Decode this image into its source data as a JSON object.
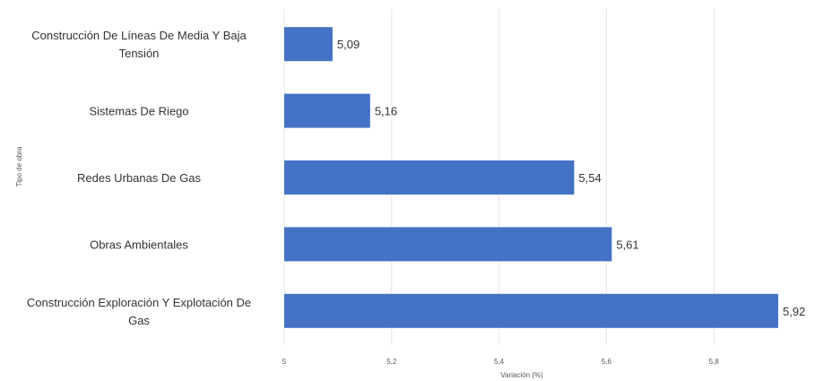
{
  "chart_data": {
    "type": "bar",
    "orientation": "horizontal",
    "title": "",
    "xlabel": "Variación (%)",
    "ylabel": "Tipo de obra",
    "categories": [
      [
        "Construcción De Líneas De Media Y Baja",
        "Tensión"
      ],
      [
        "Sistemas De Riego"
      ],
      [
        "Redes Urbanas De Gas"
      ],
      [
        "Obras Ambientales"
      ],
      [
        "Construcción Exploración Y Explotación De",
        "Gas"
      ]
    ],
    "values": [
      5.09,
      5.16,
      5.54,
      5.61,
      5.92
    ],
    "value_labels": [
      "5,09",
      "5,16",
      "5,54",
      "5,61",
      "5,92"
    ],
    "xlim": [
      5,
      5.92
    ],
    "x_ticks": [
      5,
      5.2,
      5.4,
      5.6,
      5.8
    ],
    "x_tick_labels": [
      "5",
      "5,2",
      "5,4",
      "5,6",
      "5,8"
    ],
    "grid": true,
    "bar_color": "#4472c4"
  }
}
